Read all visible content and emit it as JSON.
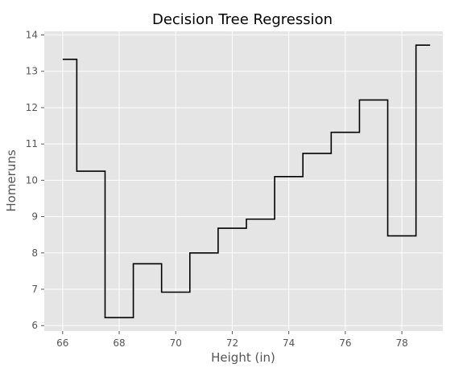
{
  "chart_data": {
    "type": "line",
    "style": "step",
    "title": "Decision Tree Regression",
    "xlabel": "Height (in)",
    "ylabel": "Homeruns",
    "xlim": [
      65.35,
      79.45
    ],
    "ylim": [
      5.85,
      14.1
    ],
    "xticks": [
      66,
      68,
      70,
      72,
      74,
      76,
      78
    ],
    "yticks": [
      6,
      7,
      8,
      9,
      10,
      11,
      12,
      13,
      14
    ],
    "grid": true,
    "series": [
      {
        "color": "#000000",
        "x": [
          66.0,
          66.5,
          66.5,
          67.5,
          67.5,
          68.5,
          68.5,
          69.5,
          69.5,
          70.5,
          70.5,
          71.5,
          71.5,
          72.5,
          72.5,
          73.5,
          73.5,
          74.5,
          74.5,
          75.5,
          75.5,
          76.5,
          76.5,
          77.5,
          77.5,
          78.5,
          78.5,
          79.0
        ],
        "y": [
          13.33,
          13.33,
          10.25,
          10.25,
          6.22,
          6.22,
          7.7,
          7.7,
          6.92,
          6.92,
          8.0,
          8.0,
          8.68,
          8.68,
          8.93,
          8.93,
          10.1,
          10.1,
          10.74,
          10.74,
          11.32,
          11.32,
          12.21,
          12.21,
          8.47,
          8.47,
          13.72,
          13.72
        ]
      }
    ]
  },
  "colors": {
    "plot_background": "#e5e5e5",
    "grid": "#ffffff",
    "line": "#000000"
  }
}
